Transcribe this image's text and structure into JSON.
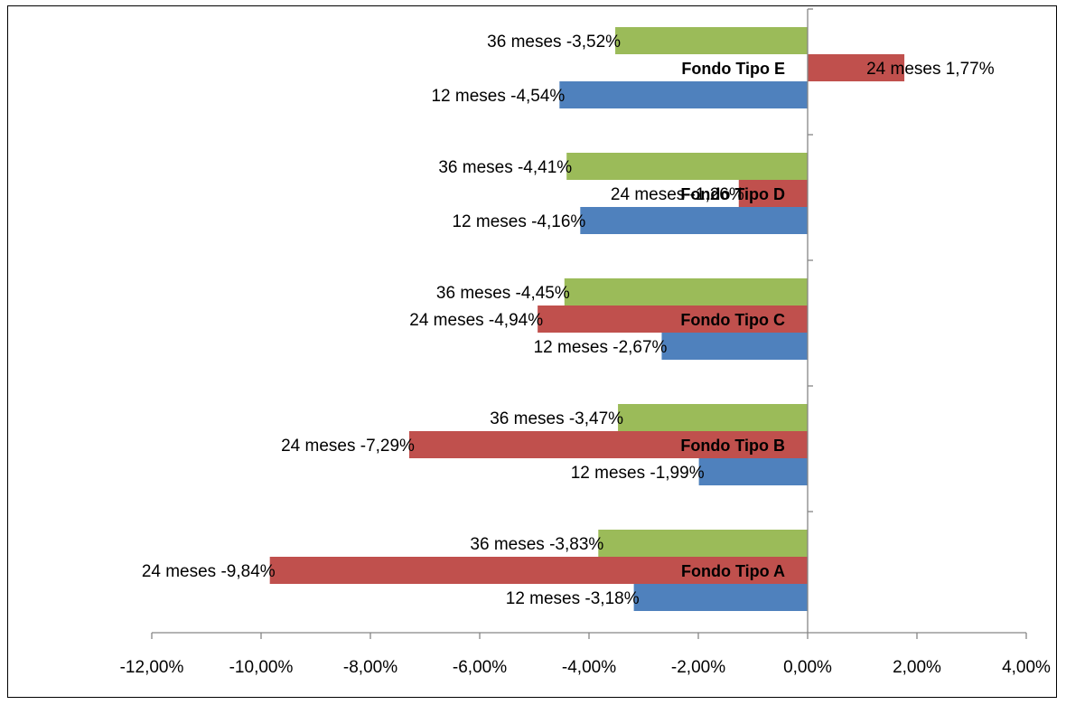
{
  "chart_data": {
    "type": "bar",
    "orientation": "horizontal",
    "categories": [
      "Fondo Tipo A",
      "Fondo Tipo B",
      "Fondo Tipo C",
      "Fondo Tipo D",
      "Fondo Tipo E"
    ],
    "series": [
      {
        "key": "12",
        "color": "#4f81bd",
        "values": [
          -3.18,
          -1.99,
          -2.67,
          -4.16,
          -4.54
        ],
        "labels": [
          "12  meses -3,18%",
          "12  meses -1,99%",
          "12  meses -2,67%",
          "12  meses -4,16%",
          "12  meses -4,54%"
        ]
      },
      {
        "key": "24",
        "color": "#c0504d",
        "values": [
          -9.84,
          -7.29,
          -4.94,
          -1.26,
          1.77
        ],
        "labels": [
          "24  meses -9,84%",
          "24  meses -7,29%",
          "24  meses -4,94%",
          "24  meses -1,26%",
          "24  meses 1,77%"
        ]
      },
      {
        "key": "36",
        "color": "#9bbb59",
        "values": [
          -3.83,
          -3.47,
          -4.45,
          -4.41,
          -3.52
        ],
        "labels": [
          "36  meses -3,83%",
          "36  meses -3,47%",
          "36  meses -4,45%",
          "36  meses -4,41%",
          "36  meses -3,52%"
        ]
      }
    ],
    "xlim": [
      -12,
      4
    ],
    "x_ticks": [
      -12,
      -10,
      -8,
      -6,
      -4,
      -2,
      0,
      2,
      4
    ],
    "x_tick_labels": [
      "-12,00%",
      "-10,00%",
      "-8,00%",
      "-6,00%",
      "-4,00%",
      "-2,00%",
      "0,00%",
      "2,00%",
      "4,00%"
    ],
    "grid": false,
    "legend": "none"
  }
}
